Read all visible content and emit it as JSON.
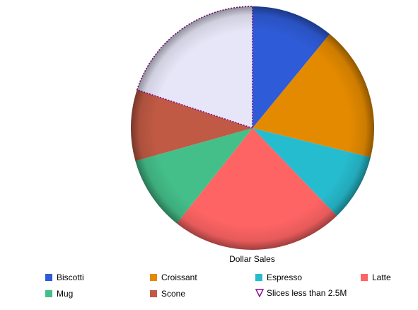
{
  "chart_data": {
    "type": "pie",
    "title": "Dollar Sales",
    "categories": [
      "Biscotti",
      "Croissant",
      "Espresso",
      "Latte",
      "Mug",
      "Scone",
      "Slices less than 2.5M"
    ],
    "values": [
      11,
      18,
      9,
      23,
      10,
      9.5,
      20
    ],
    "colors": [
      "#2e5bd7",
      "#e48a00",
      "#26bccf",
      "#ff6464",
      "#44bf8a",
      "#c05a44",
      "#e6e6f8"
    ],
    "other_outline_color": "#8b0a8b",
    "legend_position": "bottom"
  },
  "legend": {
    "items": [
      {
        "label": "Biscotti",
        "color": "#2e5bd7",
        "icon": "square"
      },
      {
        "label": "Croissant",
        "color": "#e48a00",
        "icon": "square"
      },
      {
        "label": "Espresso",
        "color": "#26bccf",
        "icon": "square"
      },
      {
        "label": "Latte",
        "color": "#ff6464",
        "icon": "square"
      },
      {
        "label": "Mug",
        "color": "#44bf8a",
        "icon": "square"
      },
      {
        "label": "Scone",
        "color": "#c05a44",
        "icon": "square"
      },
      {
        "label": "Slices less than 2.5M",
        "color": "#8b0a8b",
        "icon": "triangle-down-icon"
      }
    ]
  }
}
